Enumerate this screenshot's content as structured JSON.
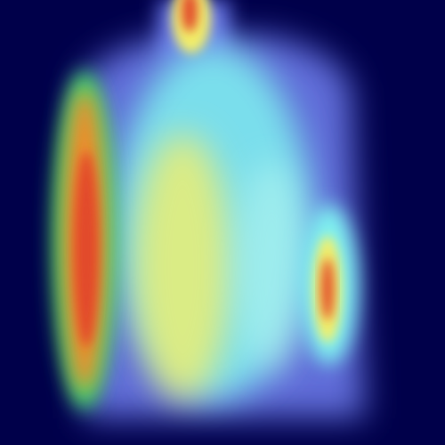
{
  "image": {
    "kind": "heatmap-overlay",
    "subject": "upper-body-figure",
    "colors": {
      "background": "#00004a",
      "body_base": "#6a78e8",
      "cool_cyan": "#7ff2f0",
      "light_cyan": "#b9f7ef",
      "warm_yellow": "#f2ef6a",
      "hot_red": "#e24a2a",
      "hot_orange": "#f28a2a",
      "green": "#3fe26a"
    }
  }
}
